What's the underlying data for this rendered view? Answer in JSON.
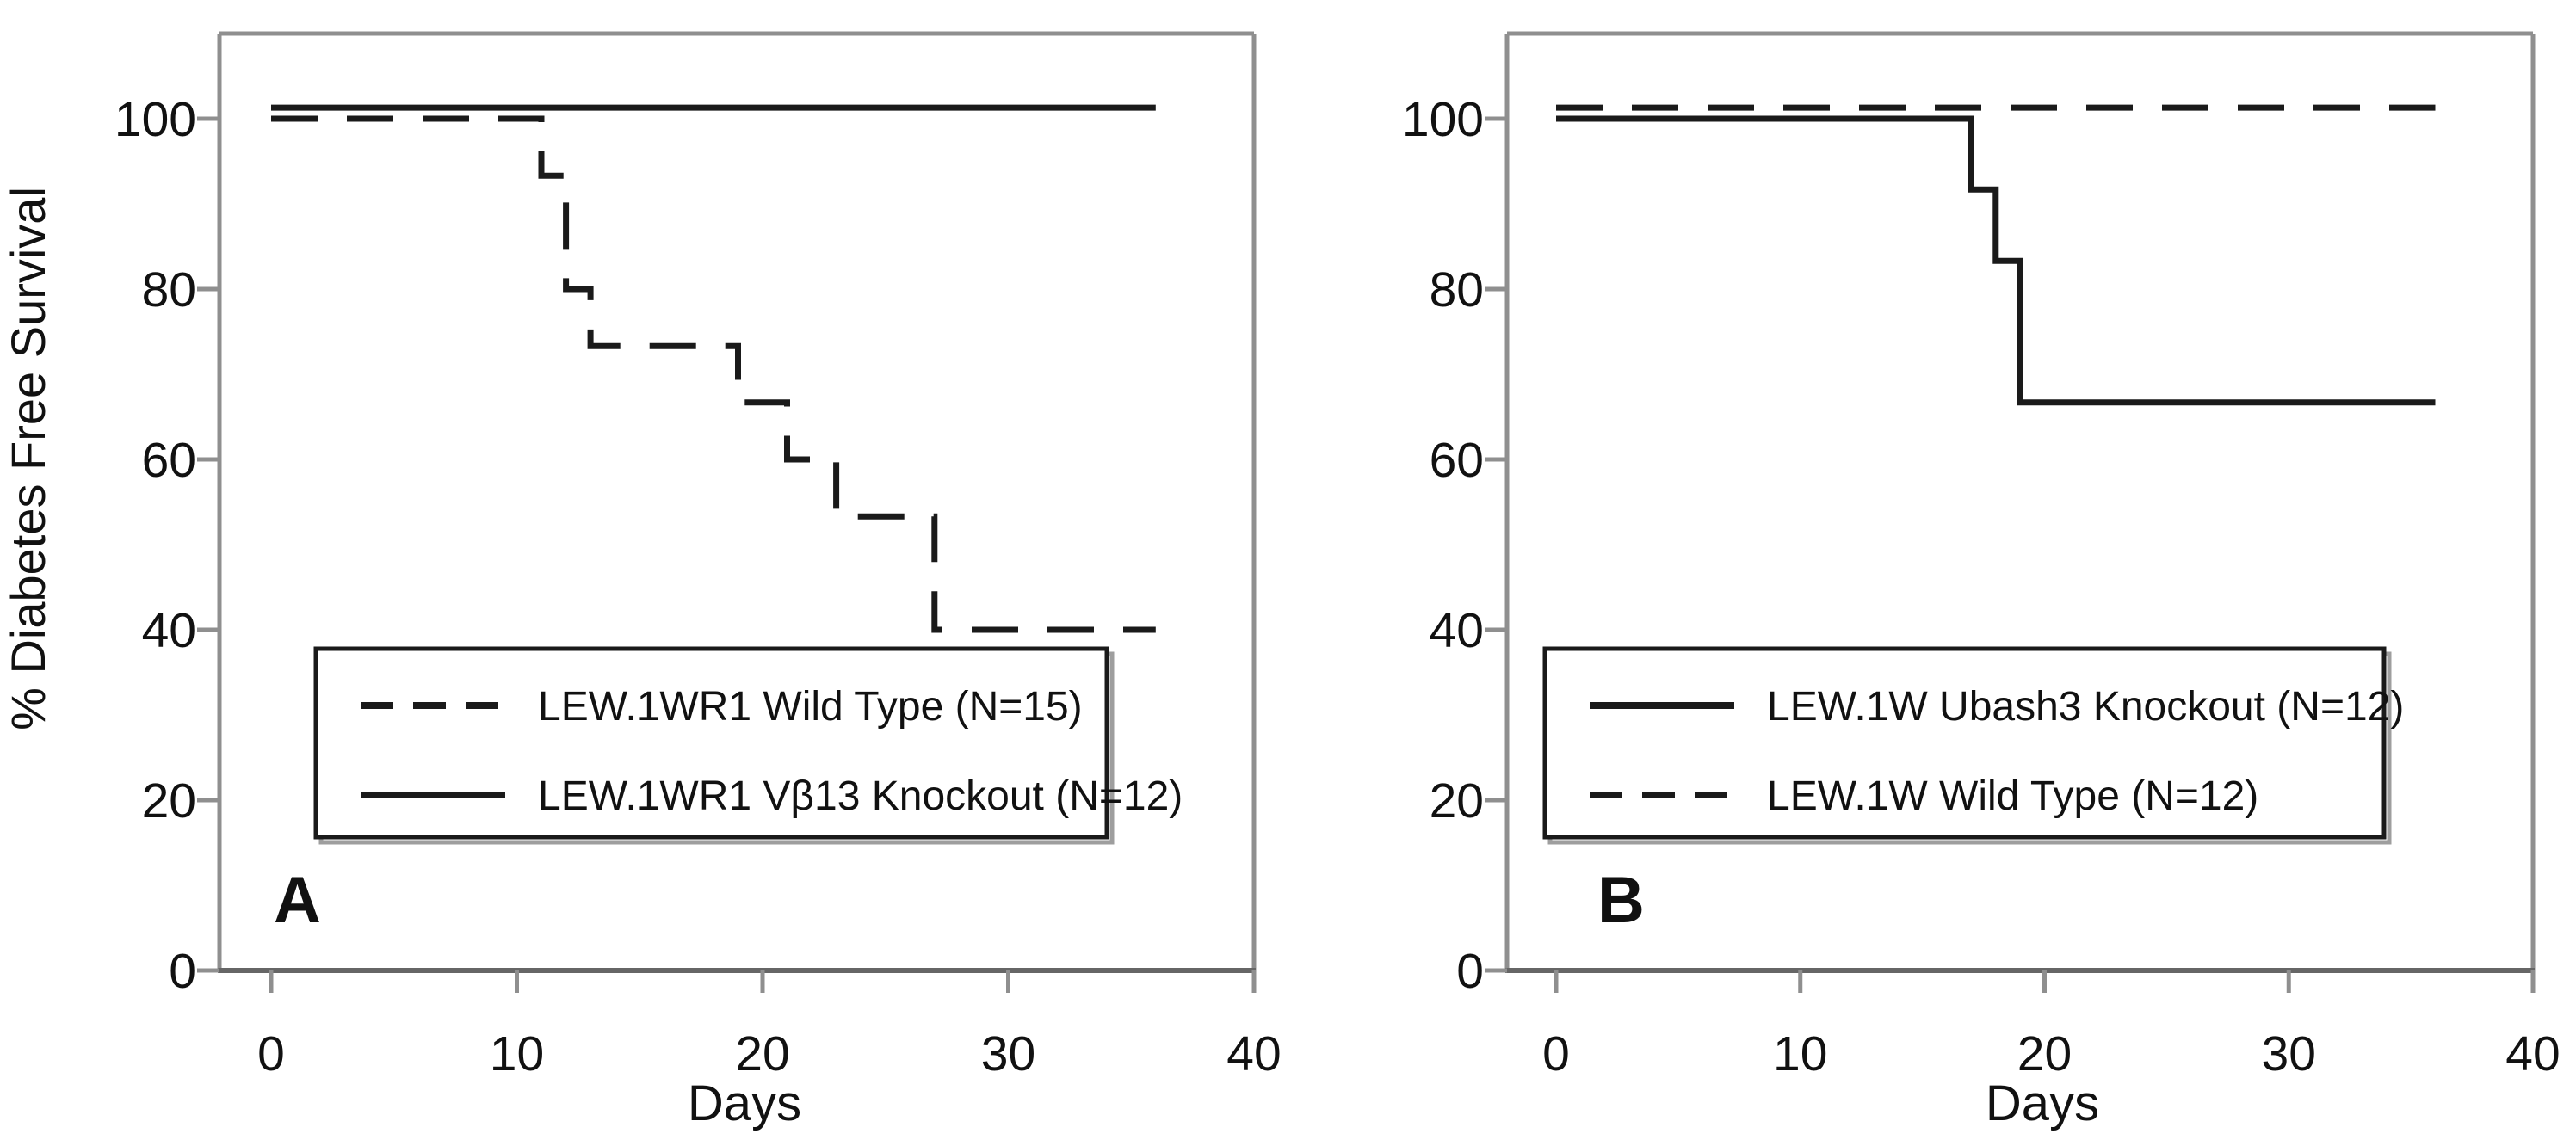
{
  "figure": {
    "background_color": "#ffffff",
    "text_color": "#111111",
    "frame_color": "#8f8f8f",
    "axis_bottom_color": "#666666",
    "curve_color": "#1a1a1a",
    "legend_shadow_color": "#9e9e9e"
  },
  "chart_data": [
    {
      "panel_label": "A",
      "type": "line",
      "subtype": "kaplan-meier-step",
      "title": "",
      "xlabel": "Days",
      "ylabel": "% Diabetes Free Survival",
      "xlim": [
        -2,
        40
      ],
      "ylim": [
        0,
        110
      ],
      "xticks": [
        0,
        10,
        20,
        30,
        40
      ],
      "yticks": [
        0,
        20,
        40,
        60,
        80,
        100
      ],
      "grid": false,
      "legend_position": "inside-lower-left",
      "series": [
        {
          "name": "LEW.1WR1 Wild Type (N=15)",
          "line_style": "dashed",
          "n": 15,
          "render_offset_pct": 0,
          "points": [
            [
              0,
              100
            ],
            [
              11,
              100
            ],
            [
              11,
              93.3
            ],
            [
              12,
              93.3
            ],
            [
              12,
              80
            ],
            [
              13,
              80
            ],
            [
              13,
              73.3
            ],
            [
              19,
              73.3
            ],
            [
              19,
              66.7
            ],
            [
              21,
              66.7
            ],
            [
              21,
              60
            ],
            [
              23,
              60
            ],
            [
              23,
              53.3
            ],
            [
              27,
              53.3
            ],
            [
              27,
              40
            ],
            [
              36,
              40
            ]
          ]
        },
        {
          "name": "LEW.1WR1 Vβ13 Knockout (N=12)",
          "line_style": "solid",
          "n": 12,
          "render_offset_pct": 1.3,
          "points": [
            [
              0,
              100
            ],
            [
              36,
              100
            ]
          ]
        }
      ],
      "legend": [
        {
          "style": "dashed",
          "label": "LEW.1WR1 Wild Type (N=15)"
        },
        {
          "style": "solid",
          "label": "LEW.1WR1 Vβ13 Knockout (N=12)"
        }
      ]
    },
    {
      "panel_label": "B",
      "type": "line",
      "subtype": "kaplan-meier-step",
      "title": "",
      "xlabel": "Days",
      "ylabel": "",
      "xlim": [
        -2,
        40
      ],
      "ylim": [
        0,
        110
      ],
      "xticks": [
        0,
        10,
        20,
        30,
        40
      ],
      "yticks": [
        0,
        20,
        40,
        60,
        80,
        100
      ],
      "grid": false,
      "legend_position": "inside-lower-left",
      "series": [
        {
          "name": "LEW.1W Ubash3 Knockout (N=12)",
          "line_style": "solid",
          "n": 12,
          "render_offset_pct": 0,
          "points": [
            [
              0,
              100
            ],
            [
              17,
              100
            ],
            [
              17,
              91.7
            ],
            [
              18,
              91.7
            ],
            [
              18,
              83.3
            ],
            [
              19,
              83.3
            ],
            [
              19,
              66.7
            ],
            [
              36,
              66.7
            ]
          ]
        },
        {
          "name": "LEW.1W Wild Type (N=12)",
          "line_style": "dashed",
          "n": 12,
          "render_offset_pct": 1.3,
          "points": [
            [
              0,
              100
            ],
            [
              36,
              100
            ]
          ]
        }
      ],
      "legend": [
        {
          "style": "solid",
          "label": "LEW.1W Ubash3 Knockout (N=12)"
        },
        {
          "style": "dashed",
          "label": "LEW.1W Wild Type (N=12)"
        }
      ]
    }
  ]
}
